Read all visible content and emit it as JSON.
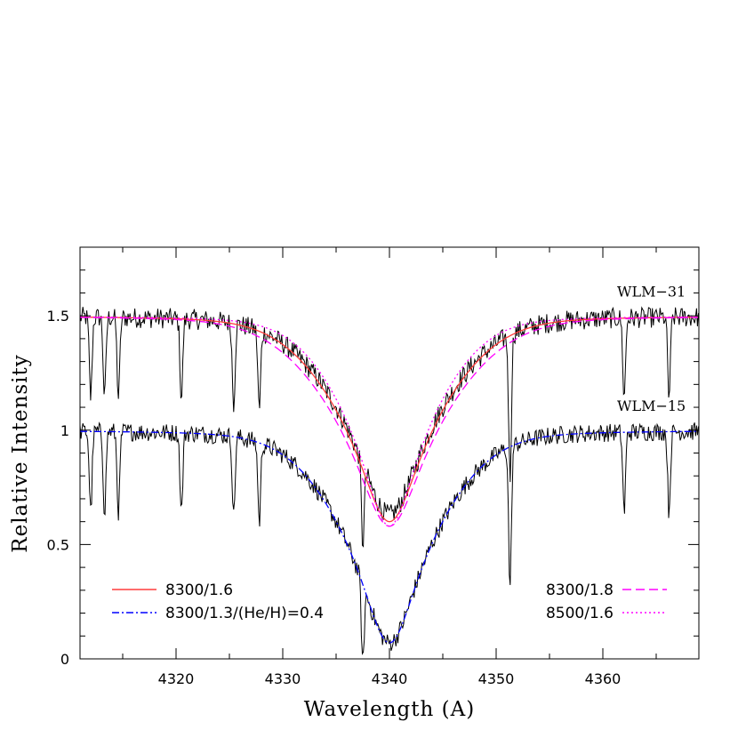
{
  "chart_data": {
    "type": "line",
    "title": "",
    "xlabel": "Wavelength (A)",
    "ylabel": "Relative Intensity",
    "xlim": [
      4311,
      4369
    ],
    "ylim": [
      0,
      1.8
    ],
    "x_ticks": [
      4320,
      4330,
      4340,
      4350,
      4360
    ],
    "y_ticks": [
      0,
      0.5,
      1,
      1.5
    ],
    "y_tick_labels": [
      "0",
      "0.5",
      "1",
      "1.5"
    ],
    "grid": false,
    "line_center": 4340.0,
    "annotations": [
      {
        "text": "WLM−31",
        "x": 4363,
        "y": 1.6
      },
      {
        "text": "WLM−15",
        "x": 4363,
        "y": 1.1
      }
    ],
    "spectra": [
      {
        "label": "WLM−31",
        "continuum": 1.5,
        "core_depth": 0.87,
        "width": 3.2,
        "noise": 0.045
      },
      {
        "label": "WLM−15",
        "continuum": 1.0,
        "core_depth": 0.93,
        "width": 3.0,
        "noise": 0.04
      }
    ],
    "series": [
      {
        "name": "8300/1.6",
        "color": "#ff3b3b",
        "style": "solid",
        "spectrum": 0,
        "continuum": 1.5,
        "core_depth": 0.9,
        "width": 3.2
      },
      {
        "name": "8300/1.8",
        "color": "#ff00ff",
        "style": "dashed",
        "spectrum": 0,
        "continuum": 1.5,
        "core_depth": 0.92,
        "width": 3.5
      },
      {
        "name": "8500/1.6",
        "color": "#ff00ff",
        "style": "dotted",
        "spectrum": 0,
        "continuum": 1.5,
        "core_depth": 0.92,
        "width": 2.8
      },
      {
        "name": "8300/1.3/(He/H)=0.4",
        "color": "#0000ff",
        "style": "dashdot",
        "spectrum": 1,
        "continuum": 1.0,
        "core_depth": 0.93,
        "width": 3.0
      }
    ],
    "legend": {
      "left": [
        {
          "label": "8300/1.6",
          "color": "#ff3b3b",
          "style": "solid"
        },
        {
          "label": "8300/1.3/(He/H)=0.4",
          "color": "#0000ff",
          "style": "dashdot"
        }
      ],
      "right": [
        {
          "label": "8300/1.8",
          "color": "#ff00ff",
          "style": "dashed"
        },
        {
          "label": "8500/1.6",
          "color": "#ff00ff",
          "style": "dotted"
        }
      ],
      "placement": "bottom"
    }
  }
}
